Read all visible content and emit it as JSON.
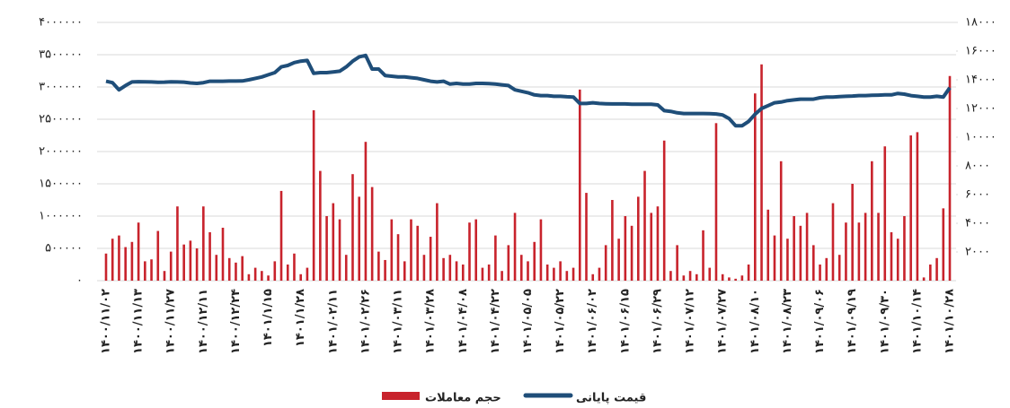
{
  "chart_data": {
    "type": "bar-line",
    "categories": [
      "۱۴۰۰/۱۱/۰۲",
      null,
      null,
      null,
      null,
      "۱۴۰۰/۱۱/۱۳",
      null,
      null,
      null,
      null,
      "۱۴۰۰/۱۱/۲۷",
      null,
      null,
      null,
      null,
      "۱۴۰۰/۱۲/۱۱",
      null,
      null,
      null,
      null,
      "۱۴۰۰/۱۲/۲۴",
      null,
      null,
      null,
      null,
      "۱۴۰۱/۱/۱۵",
      null,
      null,
      null,
      null,
      "۱۴۰۱/۱/۲۸",
      null,
      null,
      null,
      null,
      "۱۴۰۱/۰۲/۱۱",
      null,
      null,
      null,
      null,
      "۱۴۰۱/۰۲/۲۶",
      null,
      null,
      null,
      null,
      "۱۴۰۱/۰۳/۱۱",
      null,
      null,
      null,
      null,
      "۱۴۰۱/۰۳/۲۸",
      null,
      null,
      null,
      null,
      "۱۴۰۱/۰۴/۰۸",
      null,
      null,
      null,
      null,
      "۱۴۰۱/۰۴/۲۲",
      null,
      null,
      null,
      null,
      "۱۴۰۱/۰۵/۰۵",
      null,
      null,
      null,
      null,
      "۱۴۰۱/۰۵/۲۲",
      null,
      null,
      null,
      null,
      "۱۴۰۱/۰۶/۰۲",
      null,
      null,
      null,
      null,
      "۱۴۰۱/۰۶/۱۵",
      null,
      null,
      null,
      null,
      "۱۴۰۱/۰۶/۲۹",
      null,
      null,
      null,
      null,
      "۱۴۰۱/۰۷/۱۲",
      null,
      null,
      null,
      null,
      "۱۴۰۱/۰۷/۲۷",
      null,
      null,
      null,
      null,
      "۱۴۰۱/۰۸/۱۰",
      null,
      null,
      null,
      null,
      "۱۴۰۱/۰۸/۲۳",
      null,
      null,
      null,
      null,
      "۱۴۰۱/۰۹/۰۶",
      null,
      null,
      null,
      null,
      "۱۴۰۱/۰۹/۱۹",
      null,
      null,
      null,
      null,
      "۱۴۰۱/۰۹/۳۰",
      null,
      null,
      null,
      null,
      "۱۴۰۱/۱۰/۱۴",
      null,
      null,
      null,
      null,
      "۱۴۰۱/۱۰/۲۸"
    ],
    "series": [
      {
        "name": "حجم معاملات",
        "type": "bar",
        "axis": "y",
        "color": "#c8232c",
        "values": [
          420000,
          650000,
          700000,
          520000,
          600000,
          900000,
          300000,
          330000,
          770000,
          150000,
          450000,
          1150000,
          560000,
          620000,
          500000,
          1150000,
          750000,
          400000,
          820000,
          350000,
          280000,
          380000,
          100000,
          200000,
          150000,
          80000,
          300000,
          1390000,
          250000,
          420000,
          100000,
          200000,
          2640000,
          1700000,
          1000000,
          1200000,
          950000,
          400000,
          1650000,
          1300000,
          2150000,
          1450000,
          450000,
          320000,
          950000,
          720000,
          300000,
          950000,
          850000,
          400000,
          680000,
          1200000,
          350000,
          400000,
          300000,
          250000,
          900000,
          950000,
          200000,
          250000,
          700000,
          150000,
          550000,
          1050000,
          400000,
          300000,
          600000,
          950000,
          250000,
          200000,
          300000,
          150000,
          200000,
          2960000,
          1360000,
          100000,
          200000,
          550000,
          1250000,
          650000,
          1000000,
          850000,
          1300000,
          1700000,
          1050000,
          1150000,
          2170000,
          150000,
          550000,
          80000,
          150000,
          100000,
          780000,
          200000,
          2440000,
          100000,
          50000,
          30000,
          80000,
          250000,
          2900000,
          3350000,
          1100000,
          700000,
          1850000,
          650000,
          1000000,
          850000,
          1050000,
          550000,
          250000,
          350000,
          1200000,
          400000,
          900000,
          1500000,
          900000,
          1050000,
          1850000,
          1050000,
          2080000,
          750000,
          650000,
          1000000,
          2250000,
          2300000,
          50000,
          250000,
          350000,
          1120000,
          3170000
        ]
      },
      {
        "name": "قیمت پایانی",
        "type": "line",
        "axis": "y2",
        "color": "#1f4e79",
        "values": [
          13900,
          13800,
          13300,
          13600,
          13850,
          13870,
          13860,
          13850,
          13830,
          13840,
          13860,
          13850,
          13840,
          13780,
          13750,
          13800,
          13900,
          13900,
          13900,
          13910,
          13910,
          13920,
          14000,
          14100,
          14200,
          14350,
          14500,
          14900,
          15000,
          15200,
          15300,
          15350,
          14450,
          14500,
          14500,
          14550,
          14600,
          14900,
          15300,
          15600,
          15700,
          14750,
          14750,
          14300,
          14250,
          14200,
          14200,
          14150,
          14100,
          14000,
          13900,
          13850,
          13900,
          13700,
          13750,
          13700,
          13700,
          13750,
          13750,
          13730,
          13700,
          13650,
          13600,
          13300,
          13200,
          13100,
          12950,
          12900,
          12900,
          12850,
          12850,
          12820,
          12800,
          12350,
          12350,
          12400,
          12350,
          12330,
          12320,
          12320,
          12320,
          12300,
          12300,
          12300,
          12300,
          12250,
          11850,
          11800,
          11700,
          11650,
          11650,
          11650,
          11650,
          11640,
          11620,
          11550,
          11300,
          10800,
          10800,
          11100,
          11600,
          12000,
          12200,
          12400,
          12450,
          12550,
          12600,
          12650,
          12650,
          12650,
          12750,
          12800,
          12800,
          12830,
          12850,
          12870,
          12900,
          12900,
          12920,
          12930,
          12950,
          12950,
          13050,
          13000,
          12900,
          12850,
          12800,
          12800,
          12850,
          12800,
          13450
        ]
      }
    ],
    "ylim": [
      0,
      4000000
    ],
    "yticks": [
      {
        "value": 0,
        "label": "۰"
      },
      {
        "value": 500000,
        "label": "۵۰۰۰۰۰"
      },
      {
        "value": 1000000,
        "label": "۱۰۰۰۰۰۰"
      },
      {
        "value": 1500000,
        "label": "۱۵۰۰۰۰۰"
      },
      {
        "value": 2000000,
        "label": "۲۰۰۰۰۰۰"
      },
      {
        "value": 2500000,
        "label": "۲۵۰۰۰۰۰"
      },
      {
        "value": 3000000,
        "label": "۳۰۰۰۰۰۰"
      },
      {
        "value": 3500000,
        "label": "۳۵۰۰۰۰۰"
      },
      {
        "value": 4000000,
        "label": "۴۰۰۰۰۰۰"
      }
    ],
    "y2lim": [
      0,
      18000
    ],
    "y2ticks": [
      {
        "value": 2000,
        "label": "۲۰۰۰"
      },
      {
        "value": 4000,
        "label": "۴۰۰۰"
      },
      {
        "value": 6000,
        "label": "۶۰۰۰"
      },
      {
        "value": 8000,
        "label": "۸۰۰۰"
      },
      {
        "value": 10000,
        "label": "۱۰۰۰۰"
      },
      {
        "value": 12000,
        "label": "۱۲۰۰۰"
      },
      {
        "value": 14000,
        "label": "۱۴۰۰۰"
      },
      {
        "value": 16000,
        "label": "۱۶۰۰۰"
      },
      {
        "value": 18000,
        "label": "۱۸۰۰۰"
      }
    ],
    "grid": true,
    "legend": "bottom"
  }
}
